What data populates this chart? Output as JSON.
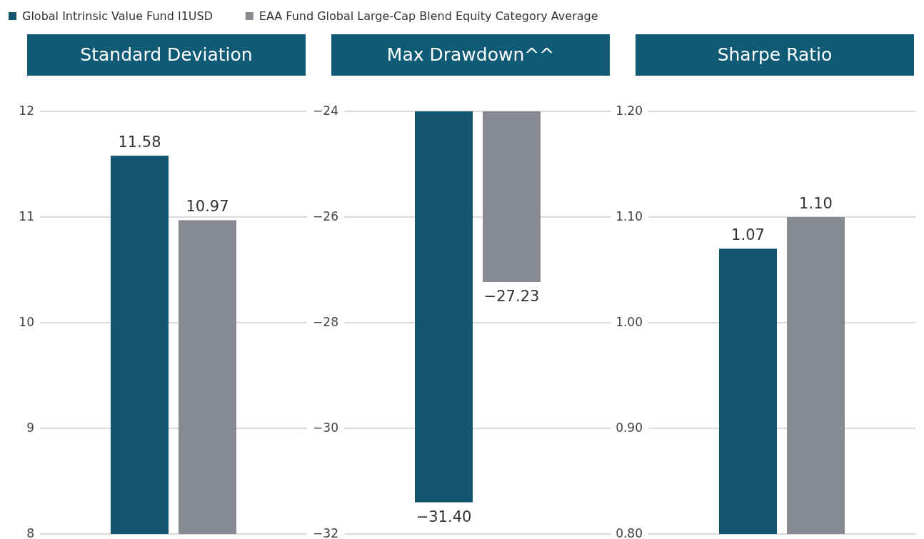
{
  "chart_data": [
    {
      "type": "bar",
      "title": "Standard Deviation",
      "categories": [
        null
      ],
      "series": [
        {
          "name": "Global Intrinsic Value Fund I1USD",
          "color": "#13546f",
          "values": [
            11.58
          ],
          "value_labels": [
            "11.58"
          ]
        },
        {
          "name": "EAA Fund Global Large-Cap Blend Equity Category Average",
          "color": "#878a91",
          "values": [
            10.97
          ],
          "value_labels": [
            "10.97"
          ]
        }
      ],
      "ylim": [
        8,
        12
      ],
      "yticks": [
        8,
        9,
        10,
        11,
        12
      ],
      "grid": "y",
      "legend": "top"
    },
    {
      "type": "bar",
      "title": "Max Drawdown^^",
      "categories": [
        null
      ],
      "series": [
        {
          "color": "#13546f",
          "values": [
            -31.4
          ],
          "value_labels": [
            "−31.40"
          ]
        },
        {
          "color": "#878a91",
          "values": [
            -27.23
          ],
          "value_labels": [
            "−27.23"
          ]
        }
      ],
      "ylim": [
        -32,
        -24
      ],
      "yticks": [
        {
          "value": -32,
          "label": "−32"
        },
        {
          "value": -30,
          "label": "−30"
        },
        {
          "value": -28,
          "label": "−28"
        },
        {
          "value": -26,
          "label": "−26"
        },
        {
          "value": -24,
          "label": "−24"
        }
      ],
      "grid": "y"
    },
    {
      "type": "bar",
      "title": "Sharpe Ratio",
      "categories": [
        null
      ],
      "series": [
        {
          "color": "#13546f",
          "values": [
            1.07
          ],
          "value_labels": [
            "1.07"
          ]
        },
        {
          "color": "#878a91",
          "values": [
            1.1
          ],
          "value_labels": [
            "1.10"
          ]
        }
      ],
      "ylim": [
        0.8,
        1.2
      ],
      "yticks": [
        {
          "value": 0.8,
          "label": "0.80"
        },
        {
          "value": 0.9,
          "label": "0.90"
        },
        {
          "value": 1.0,
          "label": "1.00"
        },
        {
          "value": 1.1,
          "label": "1.10"
        },
        {
          "value": 1.2,
          "label": "1.20"
        }
      ],
      "grid": "y"
    }
  ]
}
